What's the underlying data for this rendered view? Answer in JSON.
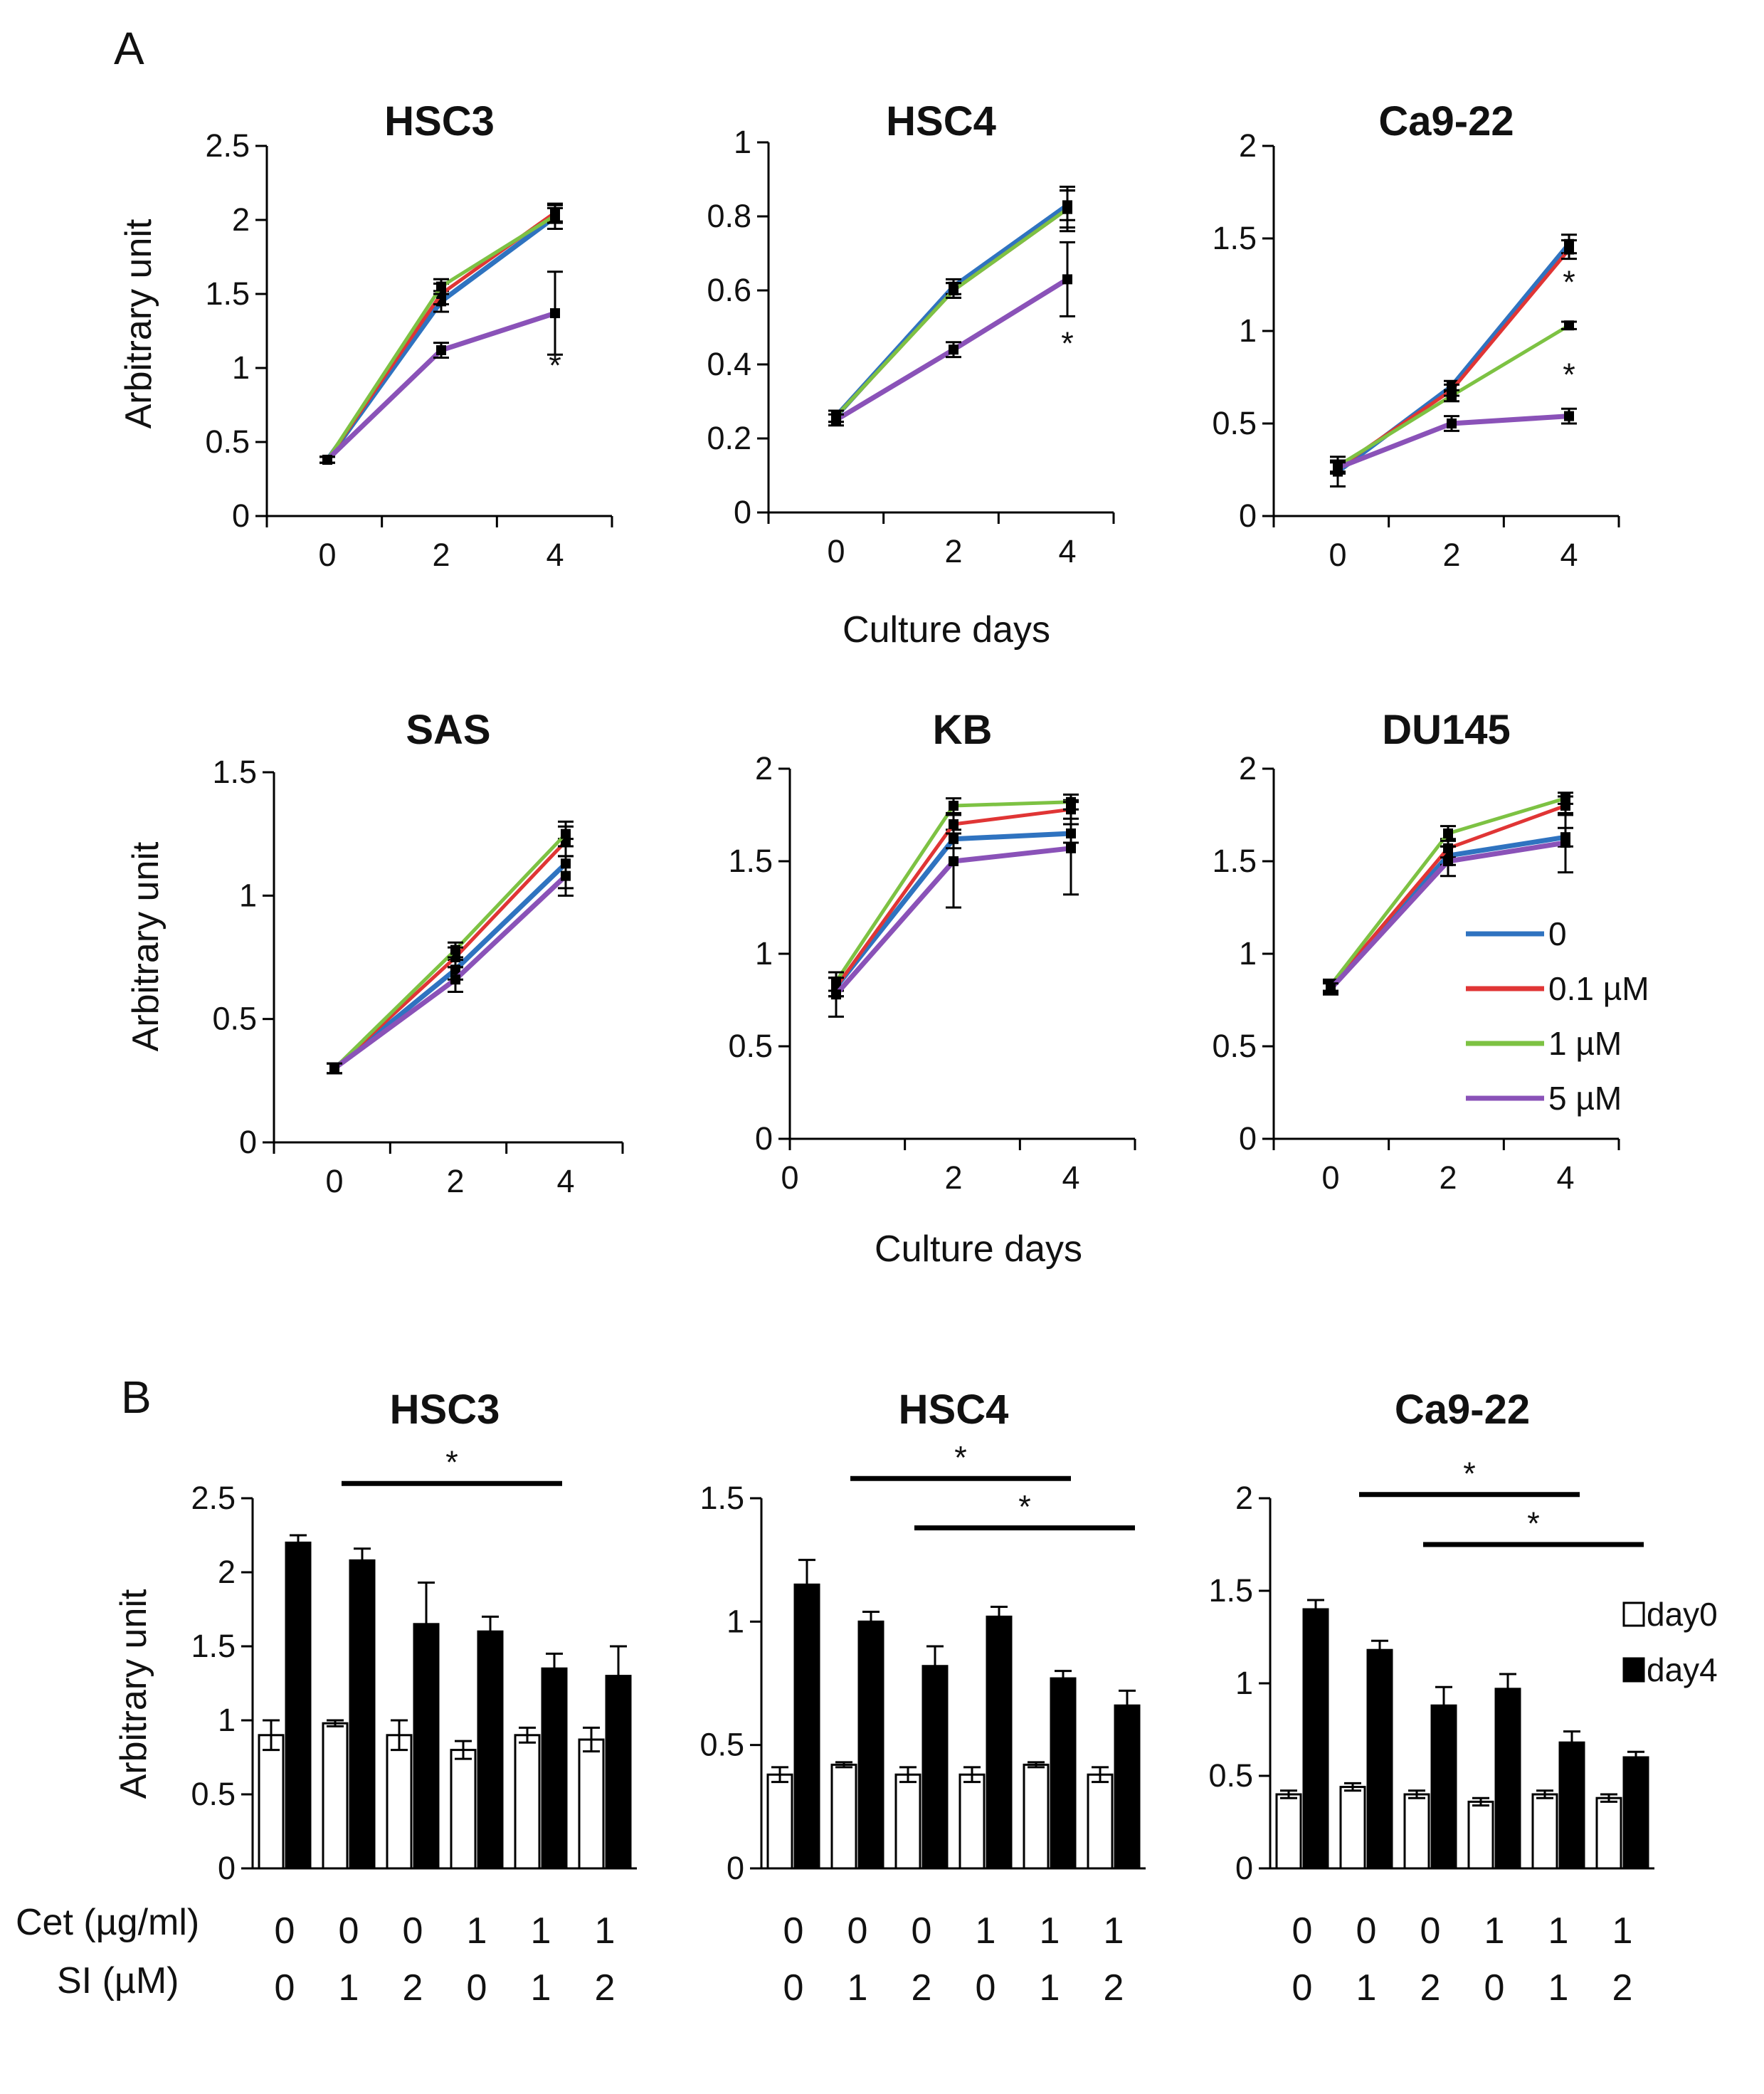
{
  "figure": {
    "panel_a_label": "A",
    "panel_b_label": "B",
    "x_axis_label": "Culture days",
    "y_axis_label": "Arbitrary unit",
    "significance_marker": "*",
    "legend_line": [
      "0",
      "0.1 µM",
      "1 µM",
      "5 µM"
    ],
    "legend_bar": [
      "day0",
      "day4"
    ],
    "row_labels": {
      "cet": "Cet (µg/ml)",
      "si": "SI (µM)"
    },
    "colors": {
      "c0": "#2f73c0",
      "c01": "#e03535",
      "c1": "#7dc243",
      "c5": "#8a52b8",
      "open": "#ffffff",
      "filled": "#000000"
    }
  },
  "chart_data": [
    {
      "type": "line",
      "panel": "A",
      "title": "HSC3",
      "x": [
        0,
        2,
        4
      ],
      "xticks": [
        "0",
        "2",
        "4"
      ],
      "ylim": [
        0,
        2.5
      ],
      "yticks": [
        "0",
        "0.5",
        "1",
        "1.5",
        "2",
        "2.5"
      ],
      "series": [
        {
          "name": "0",
          "values": [
            0.38,
            1.45,
            2.02
          ],
          "err": [
            0.02,
            0.07,
            0.08
          ]
        },
        {
          "name": "0.1 µM",
          "values": [
            0.38,
            1.5,
            2.05
          ],
          "err": [
            0.02,
            0.07,
            0.06
          ]
        },
        {
          "name": "1 µM",
          "values": [
            0.38,
            1.55,
            2.03
          ],
          "err": [
            0.02,
            0.05,
            0.05
          ]
        },
        {
          "name": "5 µM",
          "values": [
            0.38,
            1.12,
            1.37
          ],
          "err": [
            0.02,
            0.05,
            0.28
          ]
        }
      ],
      "stars": [
        {
          "x": 4,
          "y": 1.0
        }
      ]
    },
    {
      "type": "line",
      "panel": "A",
      "title": "HSC4",
      "x": [
        0,
        2,
        4
      ],
      "xticks": [
        "0",
        "2",
        "4"
      ],
      "ylim": [
        0,
        1
      ],
      "yticks": [
        "0",
        "0.2",
        "0.4",
        "0.6",
        "0.8",
        "1"
      ],
      "series": [
        {
          "name": "0",
          "values": [
            0.26,
            0.61,
            0.83
          ],
          "err": [
            0.015,
            0.02,
            0.04
          ]
        },
        {
          "name": "0.1 µM",
          "values": [
            0.26,
            0.6,
            0.82
          ],
          "err": [
            0.015,
            0.02,
            0.05
          ]
        },
        {
          "name": "1 µM",
          "values": [
            0.26,
            0.6,
            0.82
          ],
          "err": [
            0.015,
            0.02,
            0.06
          ]
        },
        {
          "name": "5 µM",
          "values": [
            0.25,
            0.44,
            0.63
          ],
          "err": [
            0.015,
            0.02,
            0.1
          ]
        }
      ],
      "stars": [
        {
          "x": 4,
          "y": 0.45
        }
      ]
    },
    {
      "type": "line",
      "panel": "A",
      "title": "Ca9-22",
      "x": [
        0,
        2,
        4
      ],
      "xticks": [
        "0",
        "2",
        "4"
      ],
      "ylim": [
        0,
        2
      ],
      "yticks": [
        "0",
        "0.5",
        "1",
        "1.5",
        "2"
      ],
      "series": [
        {
          "name": "0",
          "values": [
            0.24,
            0.7,
            1.47
          ],
          "err": [
            0.08,
            0.03,
            0.05
          ]
        },
        {
          "name": "0.1 µM",
          "values": [
            0.26,
            0.68,
            1.44
          ],
          "err": [
            0.03,
            0.03,
            0.05
          ]
        },
        {
          "name": "1 µM",
          "values": [
            0.27,
            0.65,
            1.03
          ],
          "err": [
            0.03,
            0.03,
            0.02
          ]
        },
        {
          "name": "5 µM",
          "values": [
            0.26,
            0.5,
            0.54
          ],
          "err": [
            0.03,
            0.04,
            0.04
          ]
        }
      ],
      "stars": [
        {
          "x": 4,
          "y": 1.25
        },
        {
          "x": 4,
          "y": 0.75
        }
      ]
    },
    {
      "type": "line",
      "panel": "A",
      "title": "SAS",
      "x": [
        0,
        2,
        4
      ],
      "xticks": [
        "0",
        "2",
        "4"
      ],
      "ylim": [
        0,
        1.5
      ],
      "yticks": [
        "0",
        "0.5",
        "1",
        "1.5"
      ],
      "series": [
        {
          "name": "0",
          "values": [
            0.3,
            0.7,
            1.13
          ],
          "err": [
            0.02,
            0.04,
            0.1
          ]
        },
        {
          "name": "0.1 µM",
          "values": [
            0.3,
            0.75,
            1.22
          ],
          "err": [
            0.02,
            0.04,
            0.06
          ]
        },
        {
          "name": "1 µM",
          "values": [
            0.3,
            0.78,
            1.25
          ],
          "err": [
            0.02,
            0.03,
            0.05
          ]
        },
        {
          "name": "5 µM",
          "values": [
            0.3,
            0.66,
            1.08
          ],
          "err": [
            0.02,
            0.05,
            0.08
          ]
        }
      ],
      "stars": []
    },
    {
      "type": "line",
      "panel": "A",
      "title": "KB",
      "x": [
        0,
        2,
        4
      ],
      "xticks": [
        "0",
        "2",
        "4"
      ],
      "ylim": [
        0,
        2
      ],
      "yticks": [
        "0",
        "0.5",
        "1",
        "1.5",
        "2"
      ],
      "series": [
        {
          "name": "0",
          "values": [
            0.82,
            1.62,
            1.65
          ],
          "err": [
            0.05,
            0.05,
            0.05
          ]
        },
        {
          "name": "0.1 µM",
          "values": [
            0.82,
            1.7,
            1.78
          ],
          "err": [
            0.05,
            0.05,
            0.05
          ]
        },
        {
          "name": "1 µM",
          "values": [
            0.85,
            1.8,
            1.82
          ],
          "err": [
            0.05,
            0.04,
            0.04
          ]
        },
        {
          "name": "5 µM",
          "values": [
            0.78,
            1.5,
            1.57
          ],
          "err": [
            0.12,
            0.25,
            0.25
          ]
        }
      ],
      "stars": []
    },
    {
      "type": "line",
      "panel": "A",
      "title": "DU145",
      "x": [
        0,
        2,
        4
      ],
      "xticks": [
        "0",
        "2",
        "4"
      ],
      "ylim": [
        0,
        2
      ],
      "yticks": [
        "0",
        "0.5",
        "1",
        "1.5",
        "2"
      ],
      "series": [
        {
          "name": "0",
          "values": [
            0.82,
            1.53,
            1.63
          ],
          "err": [
            0.03,
            0.05,
            0.05
          ]
        },
        {
          "name": "0.1 µM",
          "values": [
            0.82,
            1.57,
            1.8
          ],
          "err": [
            0.03,
            0.05,
            0.05
          ]
        },
        {
          "name": "1 µM",
          "values": [
            0.83,
            1.65,
            1.84
          ],
          "err": [
            0.03,
            0.04,
            0.03
          ]
        },
        {
          "name": "5 µM",
          "values": [
            0.81,
            1.5,
            1.6
          ],
          "err": [
            0.03,
            0.08,
            0.16
          ]
        }
      ],
      "stars": []
    },
    {
      "type": "bar",
      "panel": "B",
      "title": "HSC3",
      "cet": [
        "0",
        "0",
        "0",
        "1",
        "1",
        "1"
      ],
      "si": [
        "0",
        "1",
        "2",
        "0",
        "1",
        "2"
      ],
      "ylim": [
        0,
        2.5
      ],
      "yticks": [
        "0",
        "0.5",
        "1",
        "1.5",
        "2",
        "2.5"
      ],
      "series": [
        {
          "name": "day0",
          "values": [
            0.9,
            0.98,
            0.9,
            0.8,
            0.9,
            0.87
          ],
          "err": [
            0.1,
            0.02,
            0.1,
            0.06,
            0.05,
            0.08
          ]
        },
        {
          "name": "day4",
          "values": [
            2.2,
            2.08,
            1.65,
            1.6,
            1.35,
            1.3
          ],
          "err": [
            0.05,
            0.08,
            0.28,
            0.1,
            0.1,
            0.2
          ]
        }
      ],
      "brackets": [
        {
          "from": 1,
          "to": 4,
          "y": 2.6
        }
      ]
    },
    {
      "type": "bar",
      "panel": "B",
      "title": "HSC4",
      "cet": [
        "0",
        "0",
        "0",
        "1",
        "1",
        "1"
      ],
      "si": [
        "0",
        "1",
        "2",
        "0",
        "1",
        "2"
      ],
      "ylim": [
        0,
        1.5
      ],
      "yticks": [
        "0",
        "0.5",
        "1",
        "1.5"
      ],
      "series": [
        {
          "name": "day0",
          "values": [
            0.38,
            0.42,
            0.38,
            0.38,
            0.42,
            0.38
          ],
          "err": [
            0.03,
            0.01,
            0.03,
            0.03,
            0.01,
            0.03
          ]
        },
        {
          "name": "day4",
          "values": [
            1.15,
            1.0,
            0.82,
            1.02,
            0.77,
            0.66
          ],
          "err": [
            0.1,
            0.04,
            0.08,
            0.04,
            0.03,
            0.06
          ]
        }
      ],
      "brackets": [
        {
          "from": 1,
          "to": 4,
          "y": 1.58
        },
        {
          "from": 2,
          "to": 5,
          "y": 1.38
        }
      ]
    },
    {
      "type": "bar",
      "panel": "B",
      "title": "Ca9-22",
      "cet": [
        "0",
        "0",
        "0",
        "1",
        "1",
        "1"
      ],
      "si": [
        "0",
        "1",
        "2",
        "0",
        "1",
        "2"
      ],
      "ylim": [
        0,
        2
      ],
      "yticks": [
        "0",
        "0.5",
        "1",
        "1.5",
        "2"
      ],
      "series": [
        {
          "name": "day0",
          "values": [
            0.4,
            0.44,
            0.4,
            0.36,
            0.4,
            0.38
          ],
          "err": [
            0.02,
            0.02,
            0.02,
            0.02,
            0.02,
            0.02
          ]
        },
        {
          "name": "day4",
          "values": [
            1.4,
            1.18,
            0.88,
            0.97,
            0.68,
            0.6
          ],
          "err": [
            0.05,
            0.05,
            0.1,
            0.08,
            0.06,
            0.03
          ]
        }
      ],
      "brackets": [
        {
          "from": 1,
          "to": 4,
          "y": 2.02
        },
        {
          "from": 2,
          "to": 5,
          "y": 1.75
        }
      ]
    }
  ]
}
